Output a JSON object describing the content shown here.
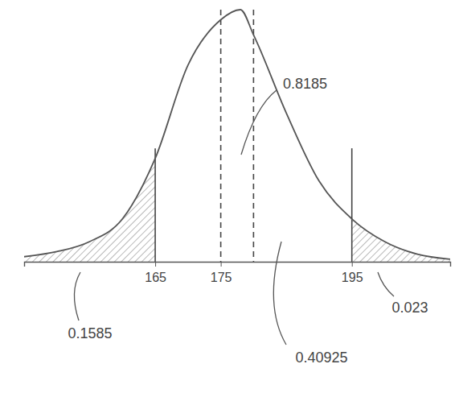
{
  "chart_data": {
    "type": "line",
    "x": [
      145,
      150,
      155,
      160,
      165,
      170,
      175,
      178,
      180,
      185,
      190,
      195,
      200,
      205,
      210
    ],
    "values": [
      0.02,
      0.04,
      0.08,
      0.17,
      0.41,
      0.78,
      0.96,
      1.0,
      0.9,
      0.59,
      0.32,
      0.17,
      0.08,
      0.03,
      0.01
    ],
    "color": "#555555",
    "xlim": [
      145,
      210
    ],
    "ylim": [
      0,
      1
    ],
    "xticks": [
      165,
      175,
      195
    ],
    "tick_labels": "x",
    "vlines": [
      {
        "x": 165,
        "line_style": "solid"
      },
      {
        "x": 175,
        "line_style": "dashed"
      },
      {
        "x": 180,
        "line_style": "dashed"
      },
      {
        "x": 195,
        "line_style": "solid"
      }
    ],
    "shaded": [
      {
        "from": 145,
        "to": 165
      },
      {
        "from": 195,
        "to": 210
      }
    ],
    "annotations": [
      "0.1585",
      "0.8185",
      "0.40925",
      "0.023"
    ]
  }
}
